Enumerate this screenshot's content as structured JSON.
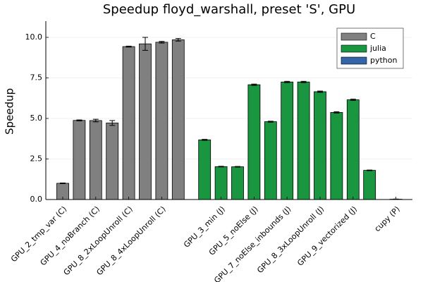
{
  "chart_data": {
    "type": "bar",
    "title": "Speedup floyd_warshall, preset 'S', GPU",
    "y_label": "Speedup",
    "categories": [
      "GPU_2_tmp_var (C)",
      null,
      "GPU_4_noBranch (C)",
      null,
      "GPU_8_2xLoopUnroll (C)",
      null,
      "GPU_8_4xLoopUnroll (C)",
      null,
      null,
      "GPU_3_min (J)",
      null,
      "GPU_5_noElse (J)",
      null,
      "GPU_7_noElse_inbounds (J)",
      null,
      "GPU_8_3xLoopUnroll (J)",
      null,
      "GPU_9_vectorized (J)",
      null,
      "cupy (P)"
    ],
    "series": [
      {
        "name": "C",
        "color": "#808080",
        "values": [
          1.0,
          4.88,
          4.87,
          4.72,
          9.43,
          9.6,
          9.7,
          9.85,
          null,
          null,
          null,
          null,
          null,
          null,
          null,
          null,
          null,
          null,
          null,
          null
        ],
        "errors": [
          0.02,
          0.03,
          0.08,
          0.15,
          0.03,
          0.4,
          0.05,
          0.08,
          null,
          null,
          null,
          null,
          null,
          null,
          null,
          null,
          null,
          null,
          null,
          null
        ]
      },
      {
        "name": "julia",
        "color": "#1a9641",
        "values": [
          null,
          null,
          null,
          null,
          null,
          null,
          null,
          null,
          3.68,
          2.03,
          2.02,
          7.08,
          4.8,
          7.25,
          7.25,
          6.65,
          5.37,
          6.15,
          1.8,
          null
        ],
        "errors": [
          null,
          null,
          null,
          null,
          null,
          null,
          null,
          null,
          0.03,
          0.02,
          0.02,
          0.04,
          0.03,
          0.04,
          0.04,
          0.04,
          0.04,
          0.04,
          0.02,
          null
        ]
      },
      {
        "name": "python",
        "color": "#3465a8",
        "values": [
          null,
          null,
          null,
          null,
          null,
          null,
          null,
          null,
          null,
          null,
          null,
          null,
          null,
          null,
          null,
          null,
          null,
          null,
          null,
          0.02
        ],
        "errors": [
          null,
          null,
          null,
          null,
          null,
          null,
          null,
          null,
          null,
          null,
          null,
          null,
          null,
          null,
          null,
          null,
          null,
          null,
          null,
          0.01
        ]
      }
    ],
    "ylim": [
      0,
      11
    ],
    "yticks": [
      {
        "value": 0,
        "label": "0.0"
      },
      {
        "value": 2.5,
        "label": "2.5"
      },
      {
        "value": 5,
        "label": "5.0"
      },
      {
        "value": 7.5,
        "label": "7.5"
      },
      {
        "value": 10,
        "label": "10.0"
      }
    ],
    "grid": true,
    "legend": "top-right"
  }
}
